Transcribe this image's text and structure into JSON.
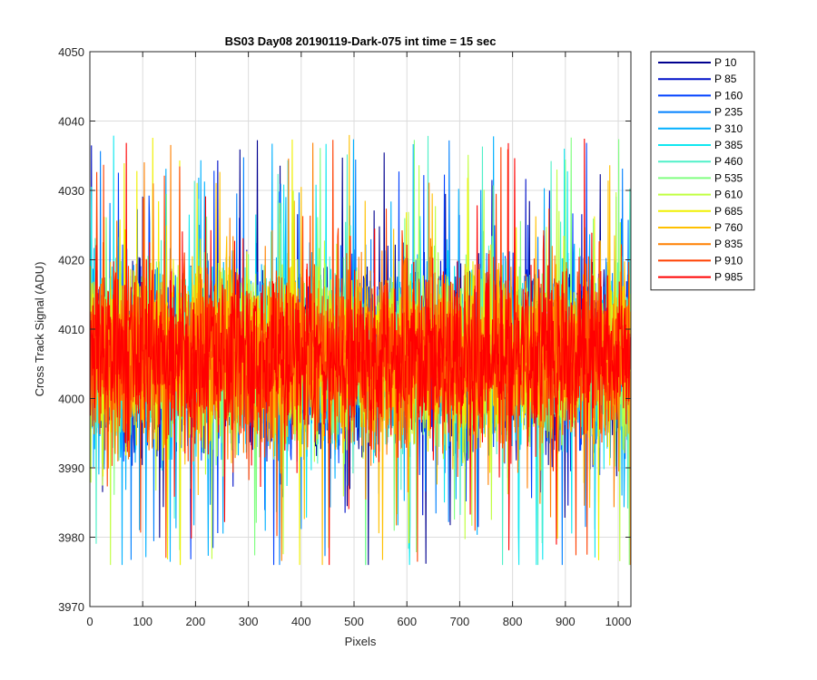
{
  "chart_data": {
    "type": "line",
    "title": "BS03 Day08 20190119-Dark-075 int time = 15 sec",
    "xlabel": "Pixels",
    "ylabel": "Cross Track Signal (ADU)",
    "xlim": [
      0,
      1024
    ],
    "ylim": [
      3970,
      4050
    ],
    "xticks": [
      0,
      100,
      200,
      300,
      400,
      500,
      600,
      700,
      800,
      900,
      1000
    ],
    "yticks": [
      3970,
      3980,
      3990,
      4000,
      4010,
      4020,
      4030,
      4040,
      4050
    ],
    "grid": true,
    "legend_position": "outside-top-right",
    "n_points_per_series": 1024,
    "approx_mean": 4006,
    "approx_spread_range": [
      3976,
      4044
    ],
    "series": [
      {
        "name": "P 10",
        "color": "#00008f"
      },
      {
        "name": "P 85",
        "color": "#0010c8"
      },
      {
        "name": "P 160",
        "color": "#0040ff"
      },
      {
        "name": "P 235",
        "color": "#0080ff"
      },
      {
        "name": "P 310",
        "color": "#00b0ff"
      },
      {
        "name": "P 385",
        "color": "#10e8f0"
      },
      {
        "name": "P 460",
        "color": "#50f0c8"
      },
      {
        "name": "P 535",
        "color": "#80ff80"
      },
      {
        "name": "P 610",
        "color": "#c0ff40"
      },
      {
        "name": "P 685",
        "color": "#f0f000"
      },
      {
        "name": "P 760",
        "color": "#ffc000"
      },
      {
        "name": "P 835",
        "color": "#ff8000"
      },
      {
        "name": "P 910",
        "color": "#ff4000"
      },
      {
        "name": "P 985",
        "color": "#ff0000"
      }
    ]
  }
}
